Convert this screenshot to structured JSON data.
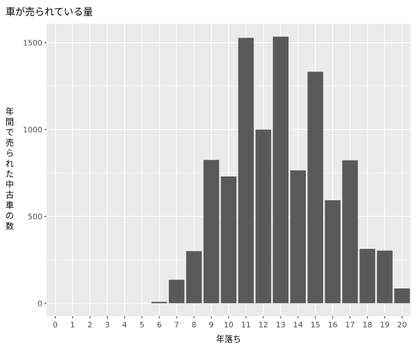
{
  "chart_data": {
    "type": "bar",
    "title": "車が売られている量",
    "xlabel": "年落ち",
    "ylabel": "年間で売られた中古車の数",
    "categories": [
      "0",
      "1",
      "2",
      "3",
      "4",
      "5",
      "6",
      "7",
      "8",
      "9",
      "10",
      "11",
      "12",
      "13",
      "14",
      "15",
      "16",
      "17",
      "18",
      "19",
      "20"
    ],
    "values": [
      0,
      0,
      0,
      0,
      0,
      0,
      8,
      135,
      300,
      825,
      730,
      1528,
      1000,
      1535,
      765,
      1333,
      593,
      823,
      313,
      303,
      85
    ],
    "yticks": [
      0,
      500,
      1000,
      1500
    ],
    "ylim": [
      -75,
      1610
    ],
    "grid": true,
    "legend": "none",
    "colors": {
      "panel": "#ebebeb",
      "grid_major": "#ffffff",
      "bar": "#595959",
      "text": "#4d4d4d"
    }
  }
}
